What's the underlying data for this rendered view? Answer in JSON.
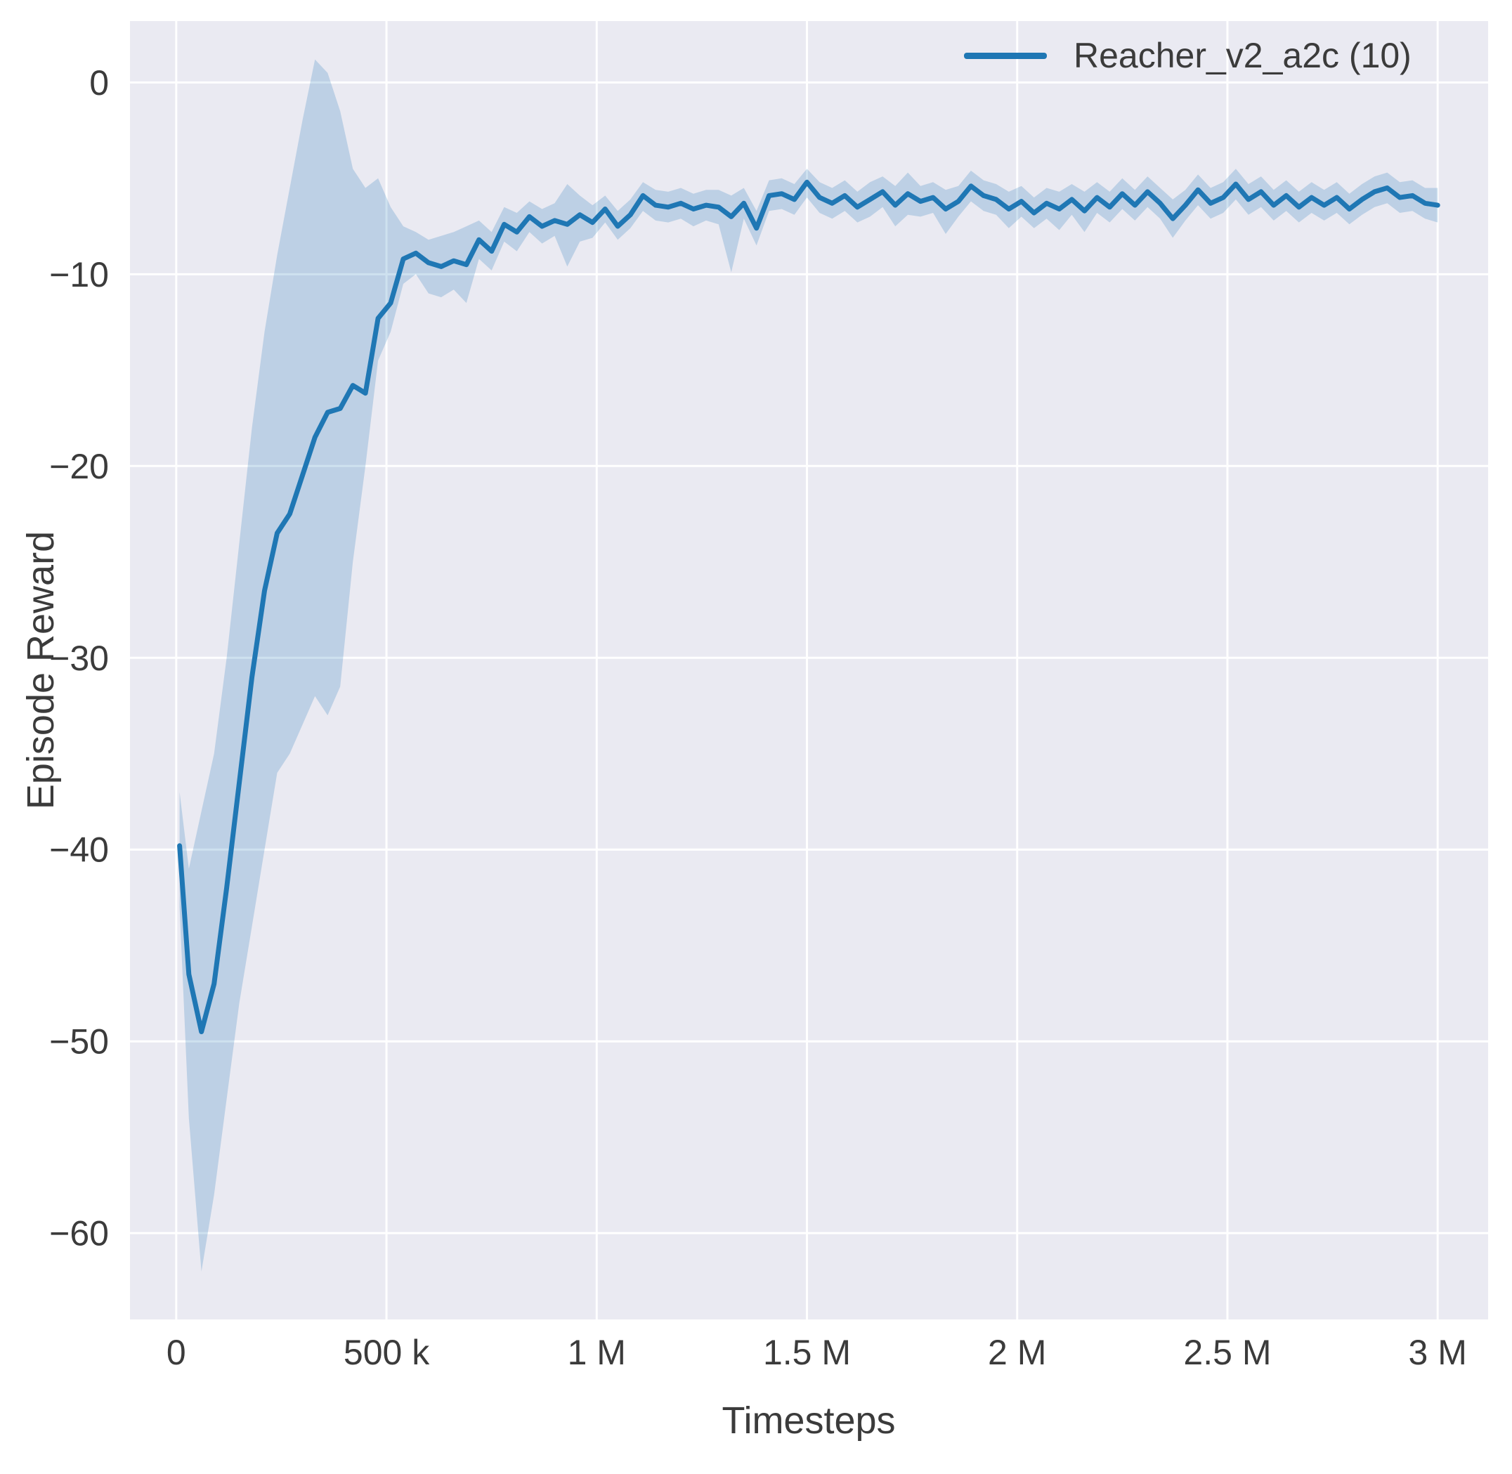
{
  "figure": {
    "background": "#ffffff",
    "plot_background": "#eaeaf2",
    "grid_color": "#ffffff",
    "text_color": "#3b3b3b"
  },
  "chart_data": {
    "type": "line",
    "title": "",
    "xlabel": "Timesteps",
    "ylabel": "Episode Reward",
    "grid": true,
    "legend_position": "upper right",
    "xlim": [
      -110000,
      3120000
    ],
    "ylim": [
      -64.5,
      3.2
    ],
    "xticks": [
      {
        "value": 0,
        "label": "0"
      },
      {
        "value": 500000,
        "label": "500 k"
      },
      {
        "value": 1000000,
        "label": "1 M"
      },
      {
        "value": 1500000,
        "label": "1.5 M"
      },
      {
        "value": 2000000,
        "label": "2 M"
      },
      {
        "value": 2500000,
        "label": "2.5 M"
      },
      {
        "value": 3000000,
        "label": "3 M"
      }
    ],
    "yticks": [
      {
        "value": 0,
        "label": "0"
      },
      {
        "value": -10,
        "label": "−10"
      },
      {
        "value": -20,
        "label": "−20"
      },
      {
        "value": -30,
        "label": "−30"
      },
      {
        "value": -40,
        "label": "−40"
      },
      {
        "value": -50,
        "label": "−50"
      },
      {
        "value": -60,
        "label": "−60"
      }
    ],
    "series": [
      {
        "name": "Reacher_v2_a2c (10)",
        "color": "#1f77b4",
        "band_color": "#1f77b4",
        "band_opacity": 0.22,
        "x": [
          8000,
          30000,
          60000,
          90000,
          120000,
          150000,
          180000,
          210000,
          240000,
          270000,
          300000,
          330000,
          360000,
          390000,
          420000,
          450000,
          480000,
          510000,
          540000,
          570000,
          600000,
          630000,
          660000,
          690000,
          720000,
          750000,
          780000,
          810000,
          840000,
          870000,
          900000,
          930000,
          960000,
          990000,
          1020000,
          1050000,
          1080000,
          1110000,
          1140000,
          1170000,
          1200000,
          1230000,
          1260000,
          1290000,
          1320000,
          1350000,
          1380000,
          1410000,
          1440000,
          1470000,
          1500000,
          1530000,
          1560000,
          1590000,
          1620000,
          1650000,
          1680000,
          1710000,
          1740000,
          1770000,
          1800000,
          1830000,
          1860000,
          1890000,
          1920000,
          1950000,
          1980000,
          2010000,
          2040000,
          2070000,
          2100000,
          2130000,
          2160000,
          2190000,
          2220000,
          2250000,
          2280000,
          2310000,
          2340000,
          2370000,
          2400000,
          2430000,
          2460000,
          2490000,
          2520000,
          2550000,
          2580000,
          2610000,
          2640000,
          2670000,
          2700000,
          2730000,
          2760000,
          2790000,
          2820000,
          2850000,
          2880000,
          2910000,
          2940000,
          2970000,
          3000000
        ],
        "mean": [
          -39.8,
          -46.5,
          -49.5,
          -47.0,
          -42.0,
          -36.5,
          -31.0,
          -26.5,
          -23.5,
          -22.5,
          -20.5,
          -18.5,
          -17.2,
          -17.0,
          -15.8,
          -16.2,
          -12.3,
          -11.5,
          -9.2,
          -8.9,
          -9.4,
          -9.6,
          -9.3,
          -9.5,
          -8.2,
          -8.8,
          -7.4,
          -7.8,
          -7.0,
          -7.5,
          -7.2,
          -7.4,
          -6.9,
          -7.3,
          -6.6,
          -7.5,
          -6.9,
          -5.9,
          -6.4,
          -6.5,
          -6.3,
          -6.6,
          -6.4,
          -6.5,
          -7.0,
          -6.3,
          -7.6,
          -5.9,
          -5.8,
          -6.1,
          -5.2,
          -6.0,
          -6.3,
          -5.9,
          -6.5,
          -6.1,
          -5.7,
          -6.4,
          -5.8,
          -6.2,
          -6.0,
          -6.6,
          -6.2,
          -5.4,
          -5.9,
          -6.1,
          -6.6,
          -6.2,
          -6.8,
          -6.3,
          -6.6,
          -6.1,
          -6.7,
          -6.0,
          -6.5,
          -5.8,
          -6.4,
          -5.7,
          -6.3,
          -7.1,
          -6.4,
          -5.6,
          -6.3,
          -6.0,
          -5.3,
          -6.1,
          -5.7,
          -6.4,
          -5.9,
          -6.5,
          -6.0,
          -6.4,
          -6.0,
          -6.6,
          -6.1,
          -5.7,
          -5.5,
          -6.0,
          -5.9,
          -6.3,
          -6.4
        ],
        "lo": [
          -43.0,
          -54.0,
          -62.0,
          -58.0,
          -53.0,
          -48.0,
          -44.0,
          -40.0,
          -36.0,
          -35.0,
          -33.5,
          -32.0,
          -33.0,
          -31.5,
          -25.0,
          -20.0,
          -14.5,
          -13.0,
          -10.5,
          -10.0,
          -11.0,
          -11.2,
          -10.8,
          -11.5,
          -9.2,
          -9.8,
          -8.3,
          -8.8,
          -7.8,
          -8.4,
          -8.0,
          -9.6,
          -8.3,
          -8.1,
          -7.3,
          -8.2,
          -7.6,
          -6.7,
          -7.2,
          -7.3,
          -7.1,
          -7.5,
          -7.2,
          -7.4,
          -9.9,
          -7.1,
          -8.5,
          -6.7,
          -6.6,
          -6.9,
          -6.0,
          -6.8,
          -7.1,
          -6.7,
          -7.3,
          -7.0,
          -6.5,
          -7.5,
          -6.9,
          -7.0,
          -6.8,
          -7.9,
          -7.0,
          -6.2,
          -6.7,
          -6.9,
          -7.6,
          -7.0,
          -7.6,
          -7.1,
          -7.7,
          -6.9,
          -7.8,
          -6.8,
          -7.3,
          -6.6,
          -7.2,
          -6.5,
          -7.1,
          -8.1,
          -7.2,
          -6.4,
          -7.1,
          -6.8,
          -6.1,
          -6.9,
          -6.5,
          -7.2,
          -6.7,
          -7.3,
          -6.8,
          -7.2,
          -6.8,
          -7.4,
          -6.9,
          -6.5,
          -6.3,
          -6.8,
          -6.7,
          -7.1,
          -7.3
        ],
        "hi": [
          -37.0,
          -41.0,
          -38.0,
          -35.0,
          -30.0,
          -24.0,
          -18.0,
          -13.0,
          -9.0,
          -5.5,
          -2.0,
          1.2,
          0.5,
          -1.5,
          -4.5,
          -5.5,
          -5.0,
          -6.5,
          -7.5,
          -7.8,
          -8.2,
          -8.0,
          -7.8,
          -7.5,
          -7.2,
          -7.8,
          -6.5,
          -6.8,
          -6.2,
          -6.6,
          -6.3,
          -5.3,
          -5.9,
          -6.4,
          -5.9,
          -6.7,
          -6.1,
          -5.2,
          -5.6,
          -5.7,
          -5.5,
          -5.8,
          -5.6,
          -5.6,
          -5.9,
          -5.5,
          -6.7,
          -5.1,
          -5.0,
          -5.3,
          -4.5,
          -5.2,
          -5.5,
          -5.1,
          -5.7,
          -5.2,
          -4.9,
          -5.4,
          -4.7,
          -5.4,
          -5.2,
          -5.6,
          -5.4,
          -4.6,
          -5.1,
          -5.3,
          -5.7,
          -5.4,
          -6.0,
          -5.5,
          -5.7,
          -5.3,
          -5.7,
          -5.2,
          -5.7,
          -5.0,
          -5.6,
          -4.9,
          -5.5,
          -6.1,
          -5.6,
          -4.8,
          -5.5,
          -5.2,
          -4.5,
          -5.3,
          -4.9,
          -5.6,
          -5.1,
          -5.7,
          -5.2,
          -5.6,
          -5.2,
          -5.8,
          -5.3,
          -4.9,
          -4.7,
          -5.2,
          -5.1,
          -5.5,
          -5.5
        ]
      }
    ]
  }
}
